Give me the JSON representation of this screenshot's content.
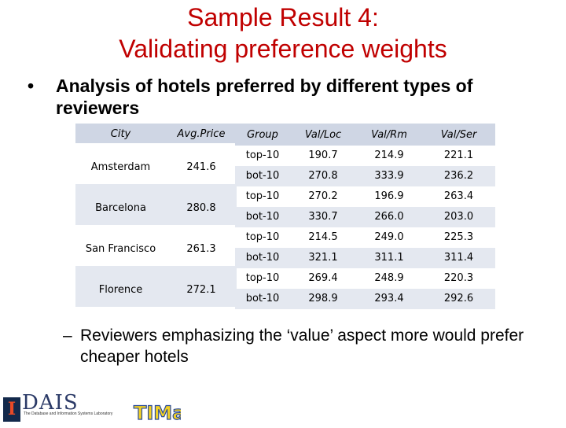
{
  "title_lines": [
    "Sample Result 4:",
    "Validating preference weights"
  ],
  "bullet": {
    "marker": "•",
    "text": "Analysis of hotels preferred by different types of reviewers"
  },
  "left_table": {
    "headers": [
      "City",
      "Avg.Price"
    ],
    "rows": [
      [
        "Amsterdam",
        "241.6"
      ],
      [
        "Barcelona",
        "280.8"
      ],
      [
        "San Francisco",
        "261.3"
      ],
      [
        "Florence",
        "272.1"
      ]
    ]
  },
  "right_table": {
    "headers": [
      "Group",
      "Val/Loc",
      "Val/Rm",
      "Val/Ser"
    ],
    "rows": [
      [
        "top-10",
        "190.7",
        "214.9",
        "221.1"
      ],
      [
        "bot-10",
        "270.8",
        "333.9",
        "236.2"
      ],
      [
        "top-10",
        "270.2",
        "196.9",
        "263.4"
      ],
      [
        "bot-10",
        "330.7",
        "266.0",
        "203.0"
      ],
      [
        "top-10",
        "214.5",
        "249.0",
        "225.3"
      ],
      [
        "bot-10",
        "321.1",
        "311.1",
        "311.4"
      ],
      [
        "top-10",
        "269.4",
        "248.9",
        "220.3"
      ],
      [
        "bot-10",
        "298.9",
        "293.4",
        "292.6"
      ]
    ]
  },
  "subbullet": {
    "marker": "–",
    "text": "Reviewers emphasizing the ‘value’ aspect more would prefer cheaper hotels"
  },
  "logos": {
    "illinois_mark": "I",
    "dais_text": "DAIS",
    "dais_caption": "The Database and Information Systems Laboratory",
    "timan_text": "TIMan"
  },
  "colors": {
    "title": "#c00000",
    "header_fill": "#cfd6e4",
    "row_alt_fill": "#e4e8f0",
    "timan_yellow": "#f2d024",
    "timan_blue": "#2a4b9b"
  }
}
